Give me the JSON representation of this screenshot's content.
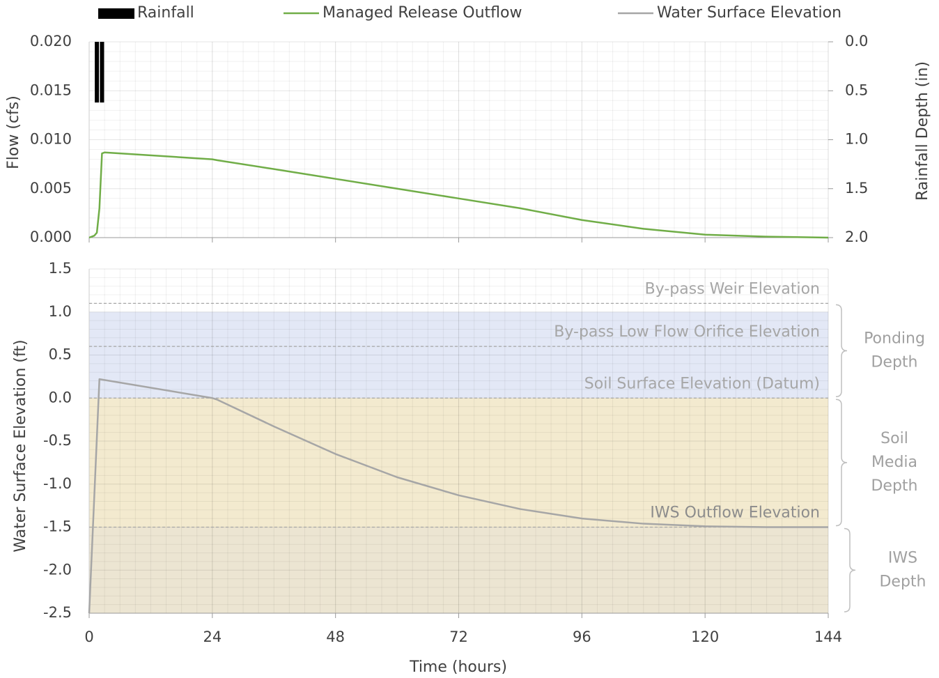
{
  "chart_data": [
    {
      "type": "line",
      "ylabel": "Flow (cfs)",
      "y2label": "Rainfall Depth (in)",
      "xlim": [
        0,
        144
      ],
      "xticks": [
        0,
        24,
        48,
        72,
        96,
        120,
        144
      ],
      "ylim": [
        0,
        0.02
      ],
      "yticks": [
        {
          "value": 0,
          "label": "0.000"
        },
        {
          "value": 0.005,
          "label": "0.005"
        },
        {
          "value": 0.01,
          "label": "0.010"
        },
        {
          "value": 0.015,
          "label": "0.015"
        },
        {
          "value": 0.02,
          "label": "0.020"
        }
      ],
      "y2lim": [
        2,
        0
      ],
      "y2ticks": [
        {
          "value": 0,
          "label": "0.0"
        },
        0.5,
        {
          "value": 1,
          "label": "1.0"
        },
        1.5,
        {
          "value": 2,
          "label": "2.0"
        }
      ],
      "grid": true,
      "minor_grid": true,
      "legend": "top",
      "series": [
        {
          "name": "Rainfall",
          "type": "bar",
          "axis": "y2",
          "color": "#000000",
          "x": [
            1.5,
            2.5
          ],
          "values": [
            0.62,
            0.62
          ]
        },
        {
          "name": "Managed Release Outflow",
          "type": "line",
          "color": "#70ad47",
          "x": [
            0,
            1,
            1.5,
            2,
            2.5,
            3,
            24,
            25,
            36,
            48,
            60,
            72,
            84,
            96,
            108,
            120,
            132,
            144
          ],
          "values": [
            0,
            0.0002,
            0.0005,
            0.003,
            0.0086,
            0.0087,
            0.008,
            0.0079,
            0.007,
            0.006,
            0.005,
            0.004,
            0.003,
            0.0018,
            0.0009,
            0.0003,
            0.0001,
            0
          ]
        }
      ]
    },
    {
      "type": "line",
      "ylabel": "Water Surface Elevation (ft)",
      "xlabel": "Time (hours)",
      "xlim": [
        0,
        144
      ],
      "xticks": [
        0,
        24,
        48,
        72,
        96,
        120,
        144
      ],
      "ylim": [
        -2.5,
        1.5
      ],
      "yticks": [
        -2.5,
        {
          "value": -2,
          "label": "-2.0"
        },
        -1.5,
        {
          "value": -1,
          "label": "-1.0"
        },
        -0.5,
        {
          "value": 0,
          "label": "0.0"
        },
        0.5,
        {
          "value": 1,
          "label": "1.0"
        },
        1.5
      ],
      "grid": true,
      "minor_grid": true,
      "bands": [
        {
          "from": 0,
          "to": 1,
          "color": "#e3e8f6"
        },
        {
          "from": -1.5,
          "to": 0,
          "color": "#f3eacf"
        },
        {
          "from": -2.5,
          "to": -1.5,
          "color": "#ece5d2"
        }
      ],
      "reference_lines": [
        {
          "label": "By-pass Weir Elevation",
          "value": 1.1
        },
        {
          "label": "By-pass Low Flow Orifice Elevation",
          "value": 0.6
        },
        {
          "label": "Soil Surface Elevation (Datum)",
          "value": 0
        },
        {
          "label": "IWS Outflow Elevation",
          "value": -1.5
        }
      ],
      "braces": [
        {
          "lines": [
            "Ponding",
            "Depth"
          ],
          "from": 1.1,
          "to": 0
        },
        {
          "lines": [
            "Soil",
            "Media",
            "Depth"
          ],
          "from": 0,
          "to": -1.5
        },
        {
          "lines": [
            "IWS",
            "Depth"
          ],
          "from": -1.5,
          "to": -2.5
        }
      ],
      "series": [
        {
          "name": "Water Surface Elevation",
          "type": "line",
          "color": "#a6a6a6",
          "x": [
            0,
            2,
            24,
            25,
            36,
            48,
            60,
            72,
            84,
            96,
            108,
            120,
            132,
            144
          ],
          "values": [
            -2.5,
            0.22,
            0,
            -0.02,
            -0.33,
            -0.65,
            -0.92,
            -1.13,
            -1.29,
            -1.4,
            -1.46,
            -1.49,
            -1.5,
            -1.5
          ]
        }
      ]
    }
  ]
}
